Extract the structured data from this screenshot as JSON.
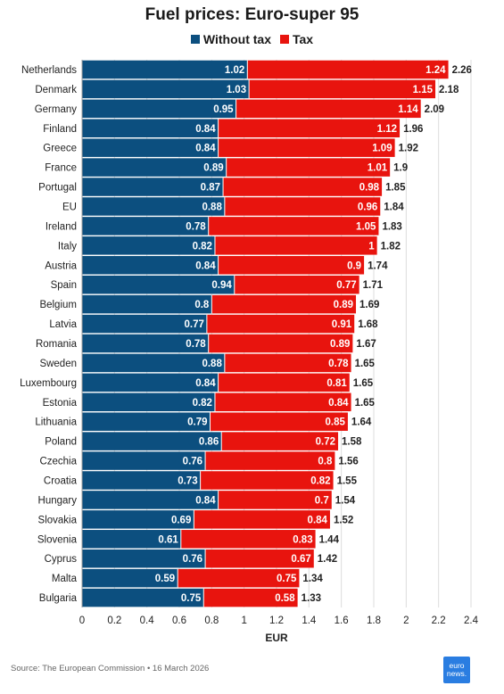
{
  "header": {
    "title": "Fuel prices: Euro-super 95",
    "legend": [
      {
        "label": "Without tax",
        "color": "#0c4f7f"
      },
      {
        "label": "Tax",
        "color": "#e8140e"
      }
    ]
  },
  "footer": {
    "source": "Source: The European Commission • 16 March 2026",
    "logo_line1": "euro",
    "logo_line2": "news."
  },
  "chart_data": {
    "type": "bar",
    "orientation": "horizontal",
    "stacked": true,
    "title": "Fuel prices: Euro-super 95",
    "xlabel": "EUR",
    "ylabel": "",
    "xlim": [
      0,
      2.4
    ],
    "xticks": [
      "0",
      "0.2",
      "0.4",
      "0.6",
      "0.8",
      "1",
      "1.2",
      "1.4",
      "1.6",
      "1.8",
      "2",
      "2.2",
      "2.4"
    ],
    "grid": true,
    "legend_position": "top-center",
    "categories": [
      "Netherlands",
      "Denmark",
      "Germany",
      "Finland",
      "Greece",
      "France",
      "Portugal",
      "EU",
      "Ireland",
      "Italy",
      "Austria",
      "Spain",
      "Belgium",
      "Latvia",
      "Romania",
      "Sweden",
      "Luxembourg",
      "Estonia",
      "Lithuania",
      "Poland",
      "Czechia",
      "Croatia",
      "Hungary",
      "Slovakia",
      "Slovenia",
      "Cyprus",
      "Malta",
      "Bulgaria"
    ],
    "series": [
      {
        "name": "Without tax",
        "color": "#0c4f7f",
        "values": [
          1.02,
          1.03,
          0.95,
          0.84,
          0.84,
          0.89,
          0.87,
          0.88,
          0.78,
          0.82,
          0.84,
          0.94,
          0.8,
          0.77,
          0.78,
          0.88,
          0.84,
          0.82,
          0.79,
          0.86,
          0.76,
          0.73,
          0.84,
          0.69,
          0.61,
          0.76,
          0.59,
          0.75
        ],
        "labels": [
          "1.02",
          "1.03",
          "0.95",
          "0.84",
          "0.84",
          "0.89",
          "0.87",
          "0.88",
          "0.78",
          "0.82",
          "0.84",
          "0.94",
          "0.8",
          "0.77",
          "0.78",
          "0.88",
          "0.84",
          "0.82",
          "0.79",
          "0.86",
          "0.76",
          "0.73",
          "0.84",
          "0.69",
          "0.61",
          "0.76",
          "0.59",
          "0.75"
        ]
      },
      {
        "name": "Tax",
        "color": "#e8140e",
        "values": [
          1.24,
          1.15,
          1.14,
          1.12,
          1.09,
          1.01,
          0.98,
          0.96,
          1.05,
          1,
          0.9,
          0.77,
          0.89,
          0.91,
          0.89,
          0.78,
          0.81,
          0.84,
          0.85,
          0.72,
          0.8,
          0.82,
          0.7,
          0.84,
          0.83,
          0.67,
          0.75,
          0.58
        ],
        "labels": [
          "1.24",
          "1.15",
          "1.14",
          "1.12",
          "1.09",
          "1.01",
          "0.98",
          "0.96",
          "1.05",
          "1",
          "0.9",
          "0.77",
          "0.89",
          "0.91",
          "0.89",
          "0.78",
          "0.81",
          "0.84",
          "0.85",
          "0.72",
          "0.8",
          "0.82",
          "0.7",
          "0.84",
          "0.83",
          "0.67",
          "0.75",
          "0.58"
        ]
      }
    ],
    "totals": [
      "2.26",
      "2.18",
      "2.09",
      "1.96",
      "1.92",
      "1.9",
      "1.85",
      "1.84",
      "1.83",
      "1.82",
      "1.74",
      "1.71",
      "1.69",
      "1.68",
      "1.67",
      "1.65",
      "1.65",
      "1.65",
      "1.64",
      "1.58",
      "1.56",
      "1.55",
      "1.54",
      "1.52",
      "1.44",
      "1.42",
      "1.34",
      "1.33"
    ]
  }
}
